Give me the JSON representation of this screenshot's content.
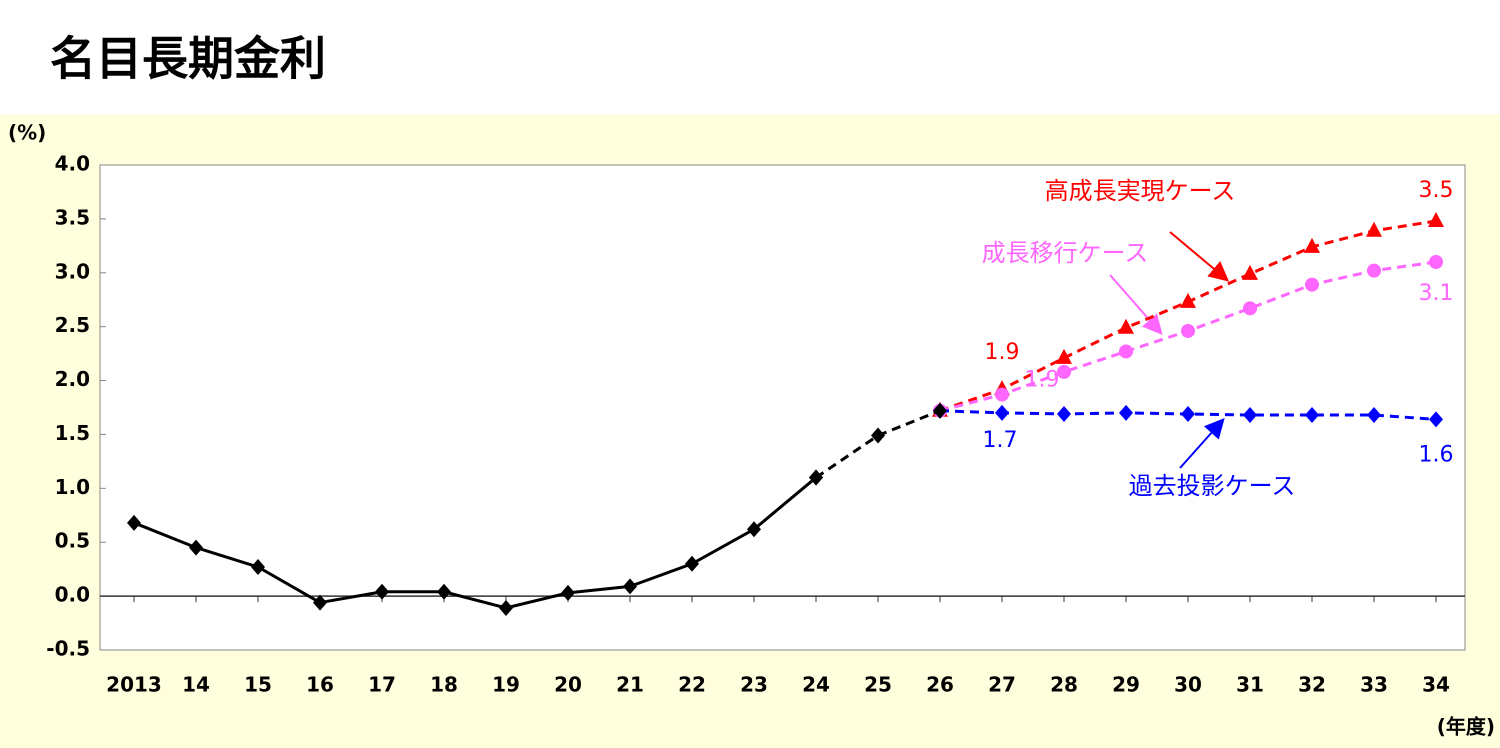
{
  "chart_data": {
    "type": "line",
    "title": "名目長期金利",
    "y_axis_label": "(%)",
    "x_axis_label": "(年度)",
    "categories": [
      "2013",
      "14",
      "15",
      "16",
      "17",
      "18",
      "19",
      "20",
      "21",
      "22",
      "23",
      "24",
      "25",
      "26",
      "27",
      "28",
      "29",
      "30",
      "31",
      "32",
      "33",
      "34"
    ],
    "ylim": [
      -0.5,
      4.0
    ],
    "yticks": [
      {
        "value": 4,
        "label": "4.0"
      },
      3.5,
      {
        "value": 3,
        "label": "3.0"
      },
      2.5,
      {
        "value": 2,
        "label": "2.0"
      },
      1.5,
      {
        "value": 1,
        "label": "1.0"
      },
      0.5,
      {
        "value": 0,
        "label": "0.0"
      },
      -0.5
    ],
    "grid": false,
    "series": [
      {
        "color": "#000000",
        "marker": "diamond",
        "dashed": false,
        "values": [
          0.68,
          0.45,
          0.27,
          -0.06,
          0.04,
          0.04,
          -0.11,
          0.03,
          0.09,
          0.3,
          0.62,
          1.1,
          null,
          null,
          null,
          null,
          null,
          null,
          null,
          null,
          null,
          null
        ]
      },
      {
        "color": "#000000",
        "marker": "diamond",
        "dashed": true,
        "values": [
          null,
          null,
          null,
          null,
          null,
          null,
          null,
          null,
          null,
          null,
          null,
          1.1,
          1.49,
          1.72,
          null,
          null,
          null,
          null,
          null,
          null,
          null,
          null
        ]
      },
      {
        "name": "高成長実現ケース",
        "color": "#ff0000",
        "marker": "triangle",
        "dashed": true,
        "values": [
          null,
          null,
          null,
          null,
          null,
          null,
          null,
          null,
          null,
          null,
          null,
          null,
          null,
          1.72,
          1.92,
          2.21,
          2.49,
          2.73,
          2.99,
          3.24,
          3.39,
          3.48
        ],
        "value_labels": [
          null,
          null,
          null,
          null,
          null,
          null,
          null,
          null,
          null,
          null,
          null,
          null,
          null,
          null,
          "1.9",
          null,
          null,
          null,
          null,
          null,
          null,
          "3.5"
        ]
      },
      {
        "name": "成長移行ケース",
        "color": "#ff66ff",
        "marker": "circle",
        "dashed": true,
        "values": [
          null,
          null,
          null,
          null,
          null,
          null,
          null,
          null,
          null,
          null,
          null,
          null,
          null,
          1.72,
          1.87,
          2.08,
          2.27,
          2.46,
          2.67,
          2.89,
          3.02,
          3.1
        ],
        "value_labels": [
          null,
          null,
          null,
          null,
          null,
          null,
          null,
          null,
          null,
          null,
          null,
          null,
          null,
          null,
          "1.9",
          null,
          null,
          null,
          null,
          null,
          null,
          "3.1"
        ]
      },
      {
        "name": "過去投影ケース",
        "color": "#0000ff",
        "marker": "diamond",
        "dashed": true,
        "values": [
          null,
          null,
          null,
          null,
          null,
          null,
          null,
          null,
          null,
          null,
          null,
          null,
          null,
          1.72,
          1.7,
          1.69,
          1.7,
          1.69,
          1.68,
          1.68,
          1.68,
          1.64
        ],
        "value_labels": [
          null,
          null,
          null,
          null,
          null,
          null,
          null,
          null,
          null,
          null,
          null,
          null,
          null,
          null,
          "1.7",
          null,
          null,
          null,
          null,
          null,
          null,
          "1.6"
        ]
      }
    ]
  }
}
